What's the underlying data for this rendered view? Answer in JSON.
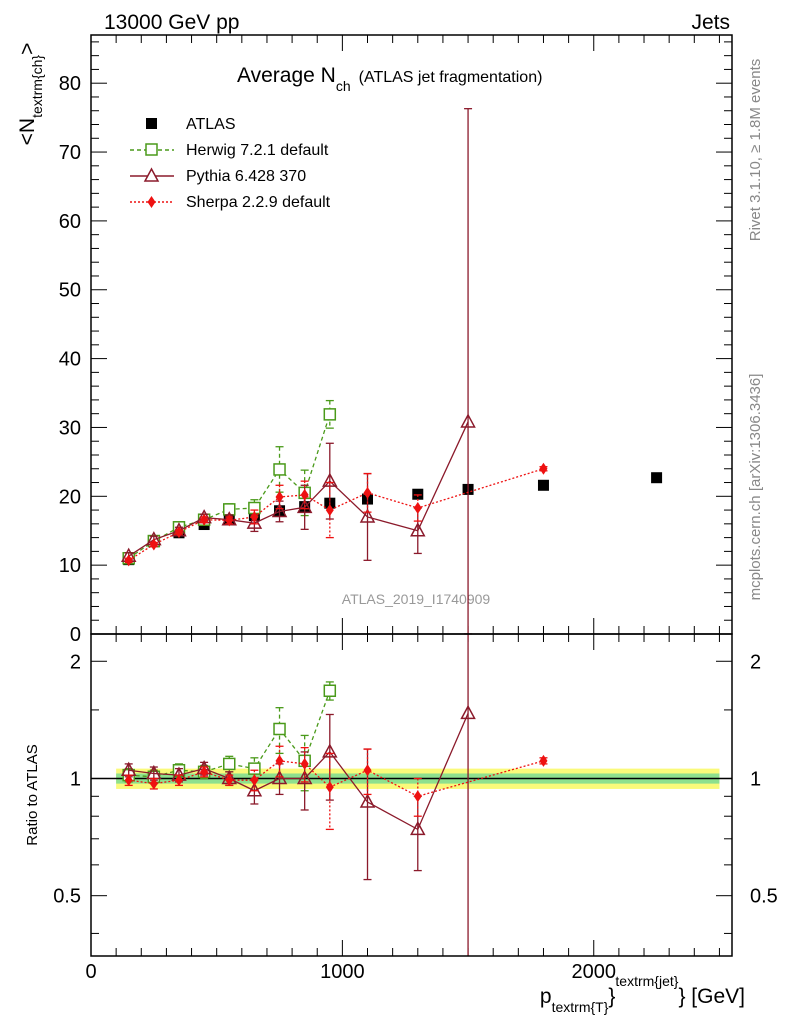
{
  "header": {
    "left": "13000 GeV pp",
    "right": "Jets",
    "title_main": "Average N",
    "title_sub": "ch",
    "title_note": "(ATLAS jet fragmentation)"
  },
  "side_text": {
    "rivet": "Rivet 3.1.10, ≥ 1.8M events",
    "mcplots": "mcplots.cern.ch [arXiv:1306.3436]"
  },
  "watermark": "ATLAS_2019_I1740909",
  "axes": {
    "y_main_label": "<N",
    "y_main_label_sub": "textrm{ch}",
    "y_main_label_end": ">",
    "y_ratio_label": "Ratio to ATLAS",
    "x_label_p": "p",
    "x_label_sub": "textrm{T}",
    "x_label_sup": "textrm{jet}",
    "x_label_brace": "}",
    "x_label_unit": " [GeV]"
  },
  "chart_data": [
    {
      "id": "main",
      "type": "scatter",
      "xlim": [
        0,
        2550
      ],
      "ylim": [
        0,
        87
      ],
      "x_ticks": [
        "0",
        "1000",
        "2000"
      ],
      "y_ticks": [
        "0",
        "10",
        "20",
        "30",
        "40",
        "50",
        "60",
        "70",
        "80"
      ],
      "series": [
        {
          "name": "ATLAS",
          "color": "#000000",
          "x": [
            150,
            250,
            350,
            450,
            550,
            650,
            750,
            850,
            950,
            1100,
            1300,
            1500,
            1800,
            2250
          ],
          "y": [
            10.8,
            13.4,
            14.7,
            15.9,
            16.6,
            17.2,
            17.9,
            18.5,
            19.0,
            19.6,
            20.3,
            21.0,
            21.6,
            22.7
          ]
        },
        {
          "name": "Herwig 7.2.1 default",
          "color": "#4a9a1a",
          "x": [
            150,
            250,
            350,
            450,
            550,
            650,
            750,
            850,
            950
          ],
          "y": [
            11.0,
            13.5,
            15.5,
            16.6,
            18.1,
            18.3,
            23.9,
            20.5,
            31.9
          ],
          "yerr": [
            0.5,
            0.5,
            0.5,
            0.5,
            0.8,
            1.2,
            3.3,
            3.3,
            2.0
          ]
        },
        {
          "name": "Pythia 6.428 370",
          "color": "#8b1a2b",
          "x": [
            150,
            250,
            350,
            450,
            550,
            650,
            750,
            850,
            950,
            1100,
            1300,
            1500
          ],
          "y": [
            11.3,
            13.7,
            15.0,
            16.9,
            16.6,
            16.1,
            17.8,
            18.4,
            22.2,
            17.0,
            15.0,
            30.8
          ],
          "yerr": [
            0.5,
            0.5,
            0.5,
            0.5,
            0.7,
            1.2,
            1.5,
            3.2,
            5.5,
            6.3,
            3.3,
            45.5
          ]
        },
        {
          "name": "Sherpa 2.2.9 default",
          "color": "#ee1111",
          "x": [
            150,
            250,
            350,
            450,
            550,
            650,
            750,
            850,
            950,
            1100,
            1300,
            1800
          ],
          "y": [
            10.7,
            13.0,
            14.8,
            16.6,
            16.5,
            17.0,
            19.9,
            20.2,
            18.0,
            20.5,
            18.3,
            24.0
          ],
          "yerr": [
            0.3,
            0.3,
            0.3,
            0.4,
            0.5,
            1.0,
            1.7,
            2.0,
            4.0,
            2.8,
            1.9,
            0.3
          ]
        }
      ]
    },
    {
      "id": "ratio",
      "type": "scatter",
      "xlim": [
        0,
        2550
      ],
      "ylim": [
        0.35,
        2.35
      ],
      "y_scale": "log",
      "y_ticks": [
        "0.5",
        "1",
        "2"
      ],
      "band_inner_halfwidth": 0.03,
      "band_outer_halfwidth": 0.06,
      "series": [
        {
          "name": "Herwig 7.2.1 default",
          "x": [
            150,
            250,
            350,
            450,
            550,
            650,
            750,
            850,
            950
          ],
          "y": [
            1.02,
            1.01,
            1.05,
            1.04,
            1.09,
            1.06,
            1.34,
            1.11,
            1.68
          ],
          "yerr": [
            0.04,
            0.04,
            0.04,
            0.04,
            0.05,
            0.07,
            0.18,
            0.18,
            0.09
          ]
        },
        {
          "name": "Pythia 6.428 370",
          "x": [
            150,
            250,
            350,
            450,
            550,
            650,
            750,
            850,
            950,
            1100,
            1300,
            1500
          ],
          "y": [
            1.05,
            1.03,
            1.02,
            1.06,
            1.0,
            0.93,
            1.0,
            1.0,
            1.17,
            0.87,
            0.74,
            1.47
          ],
          "yerr": [
            0.04,
            0.04,
            0.04,
            0.04,
            0.04,
            0.07,
            0.09,
            0.17,
            0.29,
            0.32,
            0.16,
            2.2
          ]
        },
        {
          "name": "Sherpa 2.2.9 default",
          "x": [
            150,
            250,
            350,
            450,
            550,
            650,
            750,
            850,
            950,
            1100,
            1300,
            1800
          ],
          "y": [
            0.99,
            0.97,
            0.99,
            1.04,
            0.99,
            0.99,
            1.11,
            1.09,
            0.95,
            1.05,
            0.9,
            1.11
          ],
          "yerr": [
            0.03,
            0.03,
            0.03,
            0.03,
            0.03,
            0.06,
            0.1,
            0.11,
            0.21,
            0.14,
            0.1,
            0.02
          ]
        }
      ]
    }
  ]
}
